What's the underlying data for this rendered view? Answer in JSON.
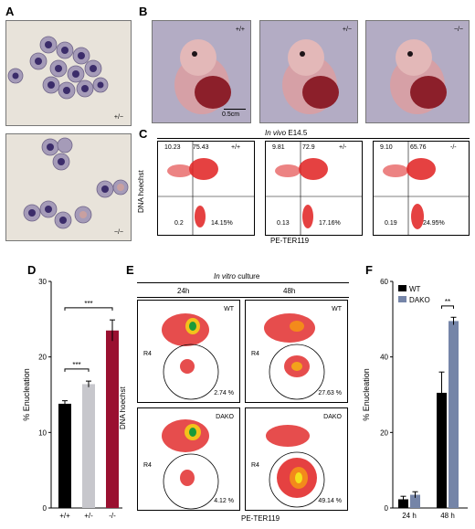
{
  "figure": {
    "letters": {
      "a": "A",
      "b": "B",
      "c": "C",
      "d": "D",
      "e": "E",
      "f": "F"
    },
    "panel_a": {
      "top_label": "+/−",
      "bottom_label": "−/−"
    },
    "panel_b": {
      "labels": [
        "+/+",
        "+/−",
        "−/−"
      ],
      "scale_label": "0.5cm"
    },
    "panel_c": {
      "header_italic": "In vivo",
      "header_rest": "E14.5",
      "ylabel": "DNA hoechst",
      "xlabel": "PE-TER119",
      "plots": [
        {
          "genotype": "+/+",
          "ul": "10.23",
          "ur": "75.43",
          "ll": "0.2",
          "lr": "14.15%"
        },
        {
          "genotype": "+/-",
          "ul": "9.81",
          "ur": "72.9",
          "ll": "0.13",
          "lr": "17.16%"
        },
        {
          "genotype": "-/-",
          "ul": "9.10",
          "ur": "65.76",
          "ll": "0.19",
          "lr": "24.95%"
        }
      ]
    },
    "panel_e": {
      "header_italic": "In vitro",
      "header_rest": "culture",
      "col_labels": [
        "24h",
        "48h"
      ],
      "ylabel": "DNA hoechst",
      "xlabel": "PE-TER119",
      "plots": [
        {
          "label": "WT",
          "gate": "R4",
          "pct": "2.74 %"
        },
        {
          "label": "WT",
          "gate": "R4",
          "pct": "27.63 %"
        },
        {
          "label": "DAKO",
          "gate": "R4",
          "pct": "4.12 %"
        },
        {
          "label": "DAKO",
          "gate": "R4",
          "pct": "49.14 %"
        }
      ]
    }
  },
  "chart_data": [
    {
      "type": "bar",
      "panel": "D",
      "ylabel": "% Enucleation",
      "ylim": [
        0,
        30
      ],
      "yticks": [
        "0",
        "10",
        "20",
        "30"
      ],
      "categories": [
        "+/+",
        "+/-",
        "-/-"
      ],
      "values": [
        13.8,
        16.4,
        23.5
      ],
      "errors": [
        0.4,
        0.4,
        1.4
      ],
      "colors": [
        "#000000",
        "#c7c7cc",
        "#9a1030"
      ],
      "significance": [
        "***",
        "***"
      ]
    },
    {
      "type": "bar",
      "panel": "F",
      "ylabel": "% Enucleation",
      "ylim": [
        0,
        60
      ],
      "yticks": [
        "0",
        "20",
        "40",
        "60"
      ],
      "categories": [
        "24 h",
        "48 h"
      ],
      "series": [
        {
          "name": "WT",
          "color": "#000000",
          "values": [
            2.3,
            30.5
          ],
          "errors": [
            0.8,
            5.5
          ]
        },
        {
          "name": "DAKO",
          "color": "#7585a8",
          "values": [
            3.5,
            49.5
          ],
          "errors": [
            0.8,
            1.0
          ]
        }
      ],
      "significance": "**",
      "legend": "top-left"
    }
  ]
}
